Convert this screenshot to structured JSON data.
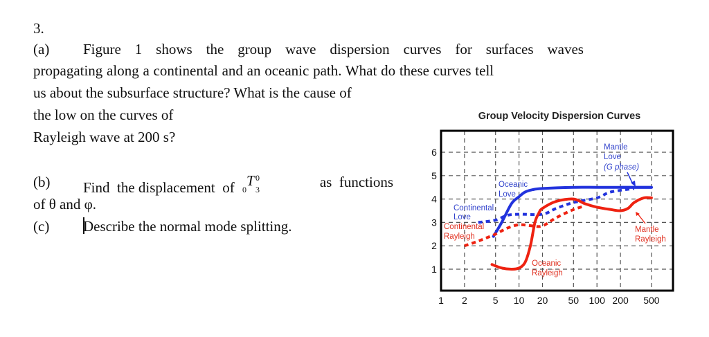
{
  "question": {
    "number": "3.",
    "part_a": {
      "label": "(a)",
      "line1_words": [
        "Figure",
        "1",
        "shows",
        "the",
        "group",
        "wave",
        "dispersion",
        "curves",
        "for",
        "surfaces",
        "waves"
      ],
      "line2": "propagating along a continental and an oceanic path.  What do these curves tell",
      "line3": "us about the subsurface structure? What is the cause of",
      "line4": "the low on the curves of",
      "line5": "Rayleigh wave at 200 s?"
    },
    "part_b": {
      "label": "(b)",
      "text_before": "Find  the displacement  of",
      "math": {
        "pre_sub": "0",
        "symbol": "T",
        "sup": "0",
        "sub": "3"
      },
      "text_after": "as  functions",
      "line2": "of θ and φ."
    },
    "part_c": {
      "label": "(c)",
      "text": "Describe the normal mode splitting."
    }
  },
  "chart_data": {
    "type": "line",
    "title": "Group Velocity Dispersion Curves",
    "xlabel": "",
    "ylabel": "",
    "x_scale": "log",
    "xlim": [
      1,
      1000
    ],
    "ylim": [
      0,
      6.8
    ],
    "x_ticks": [
      1,
      2,
      5,
      10,
      20,
      50,
      100,
      200,
      500
    ],
    "x_tick_labels": [
      "1",
      "2",
      "5",
      "10",
      "20",
      "50",
      "100",
      "200",
      "500"
    ],
    "y_ticks": [
      1,
      2,
      3,
      4,
      5,
      6
    ],
    "y_tick_labels": [
      "1",
      "2",
      "3",
      "4",
      "5",
      "6"
    ],
    "grid": true,
    "colors": {
      "love": "#2233dd",
      "rayleigh": "#ee2211",
      "label_love": "#3344cc",
      "label_rayleigh": "#e03020",
      "grid": "#555555",
      "frame": "#000000"
    },
    "series": [
      {
        "name": "Oceanic Love",
        "style": "solid",
        "color": "#2233dd",
        "x": [
          4.7,
          6,
          8,
          10,
          12,
          15,
          20,
          50,
          100,
          200,
          500
        ],
        "y": [
          2.4,
          3.0,
          3.8,
          4.1,
          4.3,
          4.4,
          4.45,
          4.5,
          4.5,
          4.5,
          4.5
        ]
      },
      {
        "name": "Continental Love",
        "style": "dotted",
        "color": "#2233dd",
        "x": [
          3,
          5,
          7,
          10,
          20,
          30,
          50,
          100,
          150,
          300
        ],
        "y": [
          3.0,
          3.1,
          3.3,
          3.35,
          3.35,
          3.6,
          3.85,
          4.05,
          4.3,
          4.45
        ]
      },
      {
        "name": "Mantle Love (G phase)",
        "style": "solid",
        "color": "#2233dd",
        "x": [
          200,
          500
        ],
        "y": [
          4.5,
          4.5
        ]
      },
      {
        "name": "Oceanic Rayleigh",
        "style": "solid",
        "color": "#ee2211",
        "x": [
          4.5,
          6,
          8,
          10,
          12,
          14,
          16,
          18,
          20,
          30,
          50,
          70,
          100,
          150,
          200,
          250,
          300,
          400,
          500
        ],
        "y": [
          1.2,
          1.05,
          1.0,
          1.05,
          1.3,
          2.0,
          3.0,
          3.4,
          3.6,
          3.9,
          4.0,
          3.8,
          3.65,
          3.55,
          3.5,
          3.6,
          3.85,
          4.05,
          4.05
        ]
      },
      {
        "name": "Continental Rayleigh",
        "style": "dotted",
        "color": "#ee2211",
        "x": [
          2,
          3,
          5,
          7,
          10,
          15,
          20,
          30,
          50,
          70
        ],
        "y": [
          2.0,
          2.2,
          2.5,
          2.75,
          2.9,
          2.85,
          2.85,
          3.2,
          3.55,
          3.7
        ]
      }
    ],
    "annotations": [
      {
        "text_lines": [
          "Mantle",
          "Love"
        ],
        "italic_line": "(G phase)",
        "color": "#3344cc"
      },
      {
        "text_lines": [
          "Oceanic",
          "Love"
        ],
        "color": "#3344cc"
      },
      {
        "text_lines": [
          "Continental",
          "Love"
        ],
        "color": "#3344cc"
      },
      {
        "text_lines": [
          "Continental",
          "Rayleigh"
        ],
        "color": "#e03020"
      },
      {
        "text_lines": [
          "Oceanic",
          "Rayleigh"
        ],
        "color": "#e03020"
      },
      {
        "text_lines": [
          "Mantle",
          "Rayleigh"
        ],
        "color": "#e03020"
      }
    ]
  }
}
